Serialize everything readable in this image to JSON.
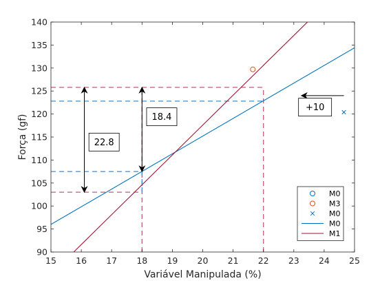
{
  "chart_data": {
    "type": "line",
    "xlabel": "Variável Manipulada (%)",
    "ylabel": "Força (gf)",
    "xlim": [
      15,
      25
    ],
    "ylim": [
      90,
      140
    ],
    "xticks": [
      "15",
      "16",
      "17",
      "18",
      "19",
      "20",
      "21",
      "22",
      "23",
      "24",
      "25"
    ],
    "yticks": [
      "90",
      "95",
      "100",
      "105",
      "110",
      "115",
      "120",
      "125",
      "130",
      "135",
      "140"
    ],
    "grid": false,
    "legend_position": "bottom-right",
    "colors": {
      "blue": "#0072BD",
      "red": "#A2142F",
      "orange": "#D95319",
      "dashed_red": "#C05A80",
      "dashed_blue": "#3A8FD0"
    },
    "series": [
      {
        "name": "M0",
        "kind": "marker-circle",
        "color": "#0072BD",
        "x": [],
        "y": []
      },
      {
        "name": "M3",
        "kind": "marker-circle",
        "color": "#D95319",
        "x": [
          21.65
        ],
        "y": [
          129.7
        ]
      },
      {
        "name": "M0",
        "kind": "marker-cross",
        "color": "#0072BD",
        "x": [
          24.65
        ],
        "y": [
          120.4
        ]
      },
      {
        "name": "M0",
        "kind": "line",
        "color": "#0072BD",
        "x": [
          15,
          25
        ],
        "y": [
          96.0,
          134.4
        ]
      },
      {
        "name": "M1",
        "kind": "line",
        "color": "#A2142F",
        "x": [
          15.75,
          23.45
        ],
        "y": [
          90.0,
          140.0
        ]
      }
    ],
    "reference_lines": [
      {
        "kind": "h",
        "y": 125.8,
        "x_from": 15,
        "x_to": 22,
        "color": "#C05A80"
      },
      {
        "kind": "h",
        "y": 122.8,
        "x_from": 15,
        "x_to": 22,
        "color": "#3A8FD0"
      },
      {
        "kind": "h",
        "y": 107.5,
        "x_from": 15,
        "x_to": 18,
        "color": "#3A8FD0"
      },
      {
        "kind": "h",
        "y": 103.0,
        "x_from": 15,
        "x_to": 18,
        "color": "#C05A80"
      },
      {
        "kind": "v",
        "x": 18,
        "y_from": 90,
        "y_to": 125.8,
        "color": "#C05A80"
      },
      {
        "kind": "v",
        "x": 22,
        "y_from": 90,
        "y_to": 125.8,
        "color": "#C05A80"
      },
      {
        "kind": "v",
        "x": 18,
        "y_from": 103.0,
        "y_to": 107.5,
        "color": "#3A8FD0"
      }
    ],
    "annotations": [
      {
        "kind": "double-arrow",
        "x": 16.1,
        "y1": 103.0,
        "y2": 125.8,
        "label": "22.8",
        "label_x": 16.75,
        "label_y": 113.9
      },
      {
        "kind": "double-arrow",
        "x": 18.0,
        "y1": 107.5,
        "y2": 125.8,
        "label": "18.4",
        "label_x": 18.65,
        "label_y": 119.4
      },
      {
        "kind": "arrow-left",
        "x_from": 24.65,
        "x_to": 23.25,
        "y": 124.0
      },
      {
        "kind": "textbox",
        "label": "+10",
        "x": 23.7,
        "y": 121.5
      }
    ]
  }
}
